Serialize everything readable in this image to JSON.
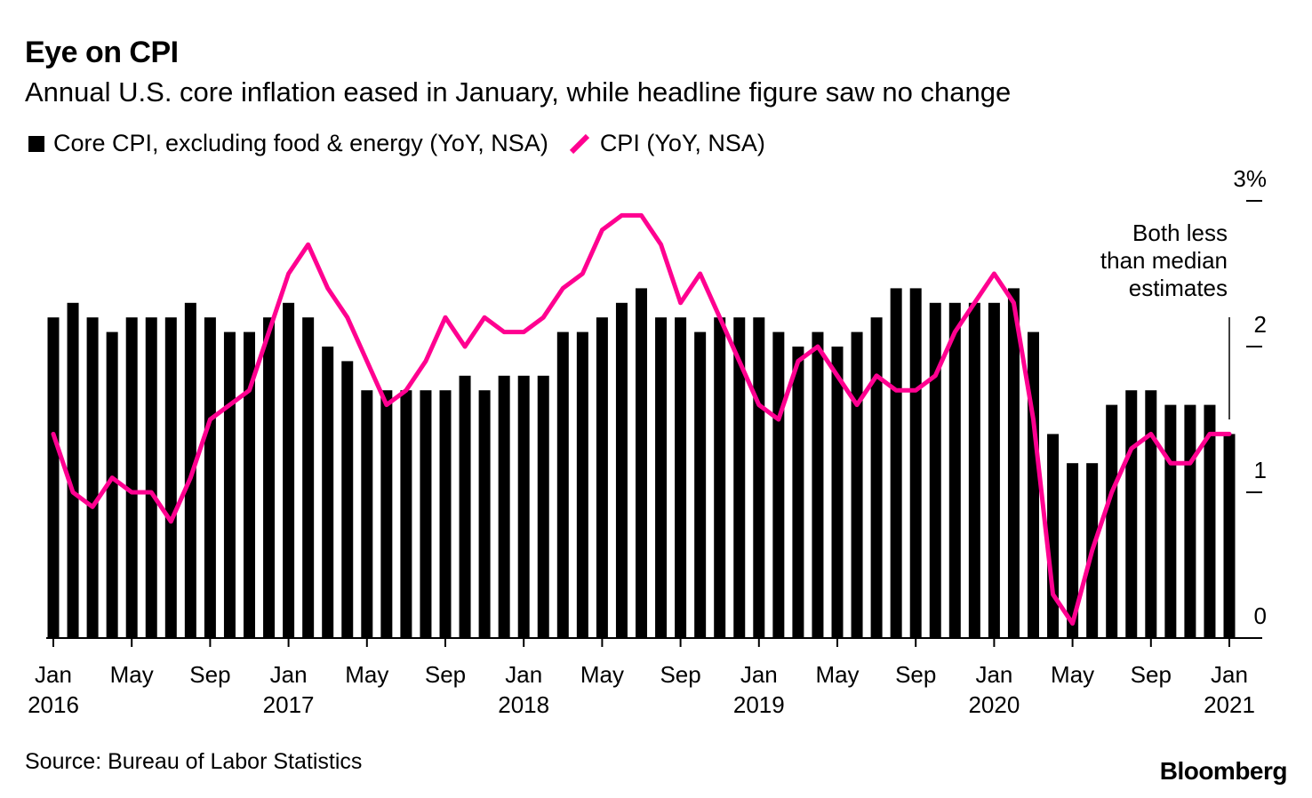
{
  "title": "Eye on CPI",
  "subtitle": "Annual U.S. core inflation eased in January, while headline figure saw no change",
  "legend": {
    "core_label": "Core CPI, excluding food & energy (YoY, NSA)",
    "cpi_label": "CPI (YoY, NSA)"
  },
  "source": "Source: Bureau of Labor Statistics",
  "brand": "Bloomberg",
  "colors": {
    "bar": "#000000",
    "line": "#ff0090",
    "axis": "#000000"
  },
  "chart_data": {
    "type": "bar",
    "title": "Eye on CPI",
    "xlabel": "",
    "ylabel": "",
    "ylim": [
      0,
      3
    ],
    "y_ticks": [
      {
        "value": 0,
        "label": "0"
      },
      {
        "value": 1,
        "label": "1"
      },
      {
        "value": 2,
        "label": "2"
      },
      {
        "value": 3,
        "label": "3%"
      }
    ],
    "x_ticks": [
      {
        "index": 0,
        "label": "Jan",
        "year": "2016"
      },
      {
        "index": 4,
        "label": "May",
        "year": ""
      },
      {
        "index": 8,
        "label": "Sep",
        "year": ""
      },
      {
        "index": 12,
        "label": "Jan",
        "year": "2017"
      },
      {
        "index": 16,
        "label": "May",
        "year": ""
      },
      {
        "index": 20,
        "label": "Sep",
        "year": ""
      },
      {
        "index": 24,
        "label": "Jan",
        "year": "2018"
      },
      {
        "index": 28,
        "label": "May",
        "year": ""
      },
      {
        "index": 32,
        "label": "Sep",
        "year": ""
      },
      {
        "index": 36,
        "label": "Jan",
        "year": "2019"
      },
      {
        "index": 40,
        "label": "May",
        "year": ""
      },
      {
        "index": 44,
        "label": "Sep",
        "year": ""
      },
      {
        "index": 48,
        "label": "Jan",
        "year": "2020"
      },
      {
        "index": 52,
        "label": "May",
        "year": ""
      },
      {
        "index": 56,
        "label": "Sep",
        "year": ""
      },
      {
        "index": 60,
        "label": "Jan",
        "year": "2021"
      }
    ],
    "series": [
      {
        "name": "Core CPI, excluding food & energy (YoY, NSA)",
        "type": "bar",
        "values": [
          2.2,
          2.3,
          2.2,
          2.1,
          2.2,
          2.2,
          2.2,
          2.3,
          2.2,
          2.1,
          2.1,
          2.2,
          2.3,
          2.2,
          2.0,
          1.9,
          1.7,
          1.7,
          1.7,
          1.7,
          1.7,
          1.8,
          1.7,
          1.8,
          1.8,
          1.8,
          2.1,
          2.1,
          2.2,
          2.3,
          2.4,
          2.2,
          2.2,
          2.1,
          2.2,
          2.2,
          2.2,
          2.1,
          2.0,
          2.1,
          2.0,
          2.1,
          2.2,
          2.4,
          2.4,
          2.3,
          2.3,
          2.3,
          2.3,
          2.4,
          2.1,
          1.4,
          1.2,
          1.2,
          1.6,
          1.7,
          1.7,
          1.6,
          1.6,
          1.6,
          1.4
        ]
      },
      {
        "name": "CPI (YoY, NSA)",
        "type": "line",
        "values": [
          1.4,
          1.0,
          0.9,
          1.1,
          1.0,
          1.0,
          0.8,
          1.1,
          1.5,
          1.6,
          1.7,
          2.1,
          2.5,
          2.7,
          2.4,
          2.2,
          1.9,
          1.6,
          1.7,
          1.9,
          2.2,
          2.0,
          2.2,
          2.1,
          2.1,
          2.2,
          2.4,
          2.5,
          2.8,
          2.9,
          2.9,
          2.7,
          2.3,
          2.5,
          2.2,
          1.9,
          1.6,
          1.5,
          1.9,
          2.0,
          1.8,
          1.6,
          1.8,
          1.7,
          1.7,
          1.8,
          2.1,
          2.3,
          2.5,
          2.3,
          1.5,
          0.3,
          0.1,
          0.6,
          1.0,
          1.3,
          1.4,
          1.2,
          1.2,
          1.4,
          1.4
        ]
      }
    ],
    "annotation": {
      "lines": [
        "Both less",
        "than median",
        "estimates"
      ]
    }
  }
}
